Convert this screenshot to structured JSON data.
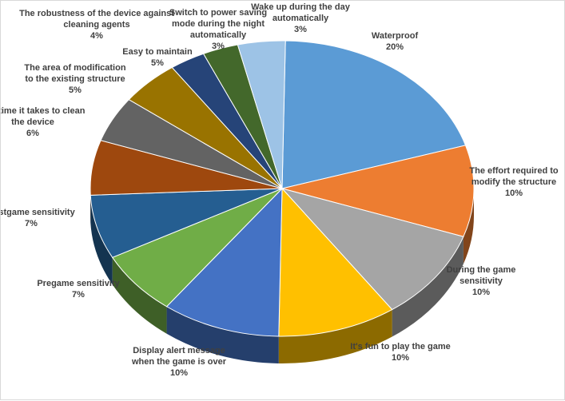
{
  "chart_data": {
    "type": "pie",
    "variant": "3d",
    "legend": "none",
    "slices": [
      {
        "label": [
          "Waterproof"
        ],
        "value": 20,
        "value_label": "20%",
        "color": "#5B9BD5"
      },
      {
        "label": [
          "The effort required  to",
          "modify the structure"
        ],
        "value": 10,
        "value_label": "10%",
        "color": "#ED7D31"
      },
      {
        "label": [
          "During the game",
          "sensitivity"
        ],
        "value": 10,
        "value_label": "10%",
        "color": "#A5A5A5"
      },
      {
        "label": [
          "It's fun to play the game"
        ],
        "value": 10,
        "value_label": "10%",
        "color": "#FFC000"
      },
      {
        "label": [
          "Display alert message",
          "when  the game is over"
        ],
        "value": 10,
        "value_label": "10%",
        "color": "#4472C4"
      },
      {
        "label": [
          "Pregame sensitivity"
        ],
        "value": 7,
        "value_label": "7%",
        "color": "#70AD47"
      },
      {
        "label": [
          "Postgame sensitivity"
        ],
        "value": 7,
        "value_label": "7%",
        "color": "#255E91"
      },
      {
        "label": [
          "The time it takes to clean",
          "the device"
        ],
        "value": 6,
        "value_label": "6%",
        "color": "#9E480E"
      },
      {
        "label": [
          "The area of modification",
          "to the  existing structure"
        ],
        "value": 5,
        "value_label": "5%",
        "color": "#636363"
      },
      {
        "label": [
          "Easy to maintain"
        ],
        "value": 5,
        "value_label": "5%",
        "color": "#997300"
      },
      {
        "label": [
          "Switch to power saving",
          "mode during the night",
          "automatically"
        ],
        "value": 3,
        "value_label": "3%",
        "color": "#264478"
      },
      {
        "label": [
          "Wake up during the day",
          "automatically"
        ],
        "value": 3,
        "value_label": "3%",
        "color": "#43682B"
      },
      {
        "label": [
          "The robustness of the device against",
          "cleaning agents"
        ],
        "value": 4,
        "value_label": "4%",
        "color": "#9DC3E6"
      }
    ]
  }
}
